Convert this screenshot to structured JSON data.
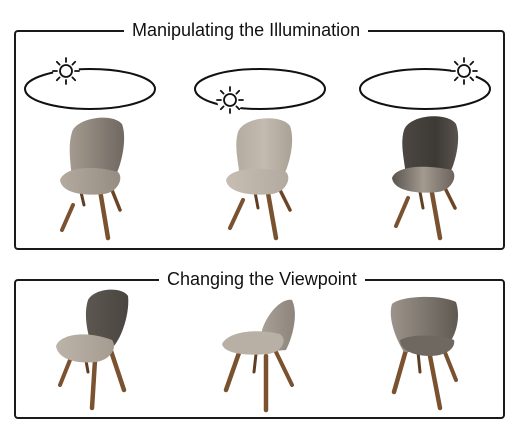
{
  "panels": {
    "illumination": {
      "title": "Manipulating the Illumination",
      "scenes": [
        {
          "light": "sun-icon",
          "light_position_on_orbit": "top-left",
          "shading": "lit-from-left"
        },
        {
          "light": "sun-icon",
          "light_position_on_orbit": "bottom-left",
          "shading": "lit-from-front"
        },
        {
          "light": "sun-icon",
          "light_position_on_orbit": "top-right",
          "shading": "lit-from-back"
        }
      ]
    },
    "viewpoint": {
      "title": "Changing the Viewpoint",
      "views": [
        "front-left",
        "side-right",
        "back-right"
      ]
    }
  },
  "colors": {
    "border": "#1a1a1a",
    "seat_light": "#b8aea3",
    "seat_mid": "#8f867c",
    "seat_dark": "#4a4540",
    "legs": "#7a5230"
  }
}
